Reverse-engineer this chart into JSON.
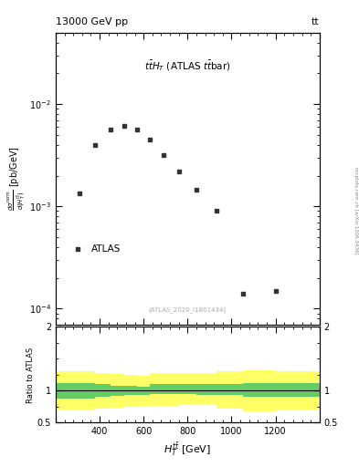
{
  "title_top": "13000 GeV pp",
  "title_top_right": "tt",
  "atlas_label": "ATLAS",
  "watermark": "(ATLAS_2020_I1801434)",
  "ratio_ylabel": "Ratio to ATLAS",
  "data_x": [
    310,
    380,
    450,
    510,
    570,
    630,
    690,
    760,
    840,
    930,
    1050,
    1200
  ],
  "data_y": [
    0.00135,
    0.004,
    0.0056,
    0.0061,
    0.0057,
    0.0045,
    0.0032,
    0.0022,
    0.00145,
    0.0009,
    0.00014,
    0.00015
  ],
  "xlim": [
    200,
    1400
  ],
  "ylim_main": [
    7e-05,
    0.05
  ],
  "ylim_ratio": [
    0.5,
    2.0
  ],
  "band_x": [
    200,
    310,
    380,
    450,
    510,
    570,
    630,
    690,
    760,
    840,
    930,
    1050,
    1200,
    1400
  ],
  "band_green_lo": [
    0.88,
    0.88,
    0.9,
    0.92,
    0.93,
    0.94,
    0.95,
    0.95,
    0.95,
    0.94,
    0.93,
    0.9,
    0.9,
    0.9
  ],
  "band_green_hi": [
    1.12,
    1.12,
    1.1,
    1.08,
    1.07,
    1.06,
    1.1,
    1.1,
    1.1,
    1.1,
    1.1,
    1.12,
    1.12,
    1.12
  ],
  "band_yellow_lo": [
    0.7,
    0.7,
    0.72,
    0.74,
    0.75,
    0.76,
    0.76,
    0.76,
    0.78,
    0.78,
    0.72,
    0.68,
    0.7,
    0.7
  ],
  "band_yellow_hi": [
    1.3,
    1.3,
    1.28,
    1.26,
    1.25,
    1.24,
    1.27,
    1.27,
    1.28,
    1.28,
    1.3,
    1.32,
    1.3,
    1.3
  ],
  "marker_color": "#333333",
  "green_color": "#66cc66",
  "yellow_color": "#ffff66",
  "bg_color": "#ffffff",
  "right_side_label": "mcplots.cern.ch [arXiv:1306.3436]"
}
